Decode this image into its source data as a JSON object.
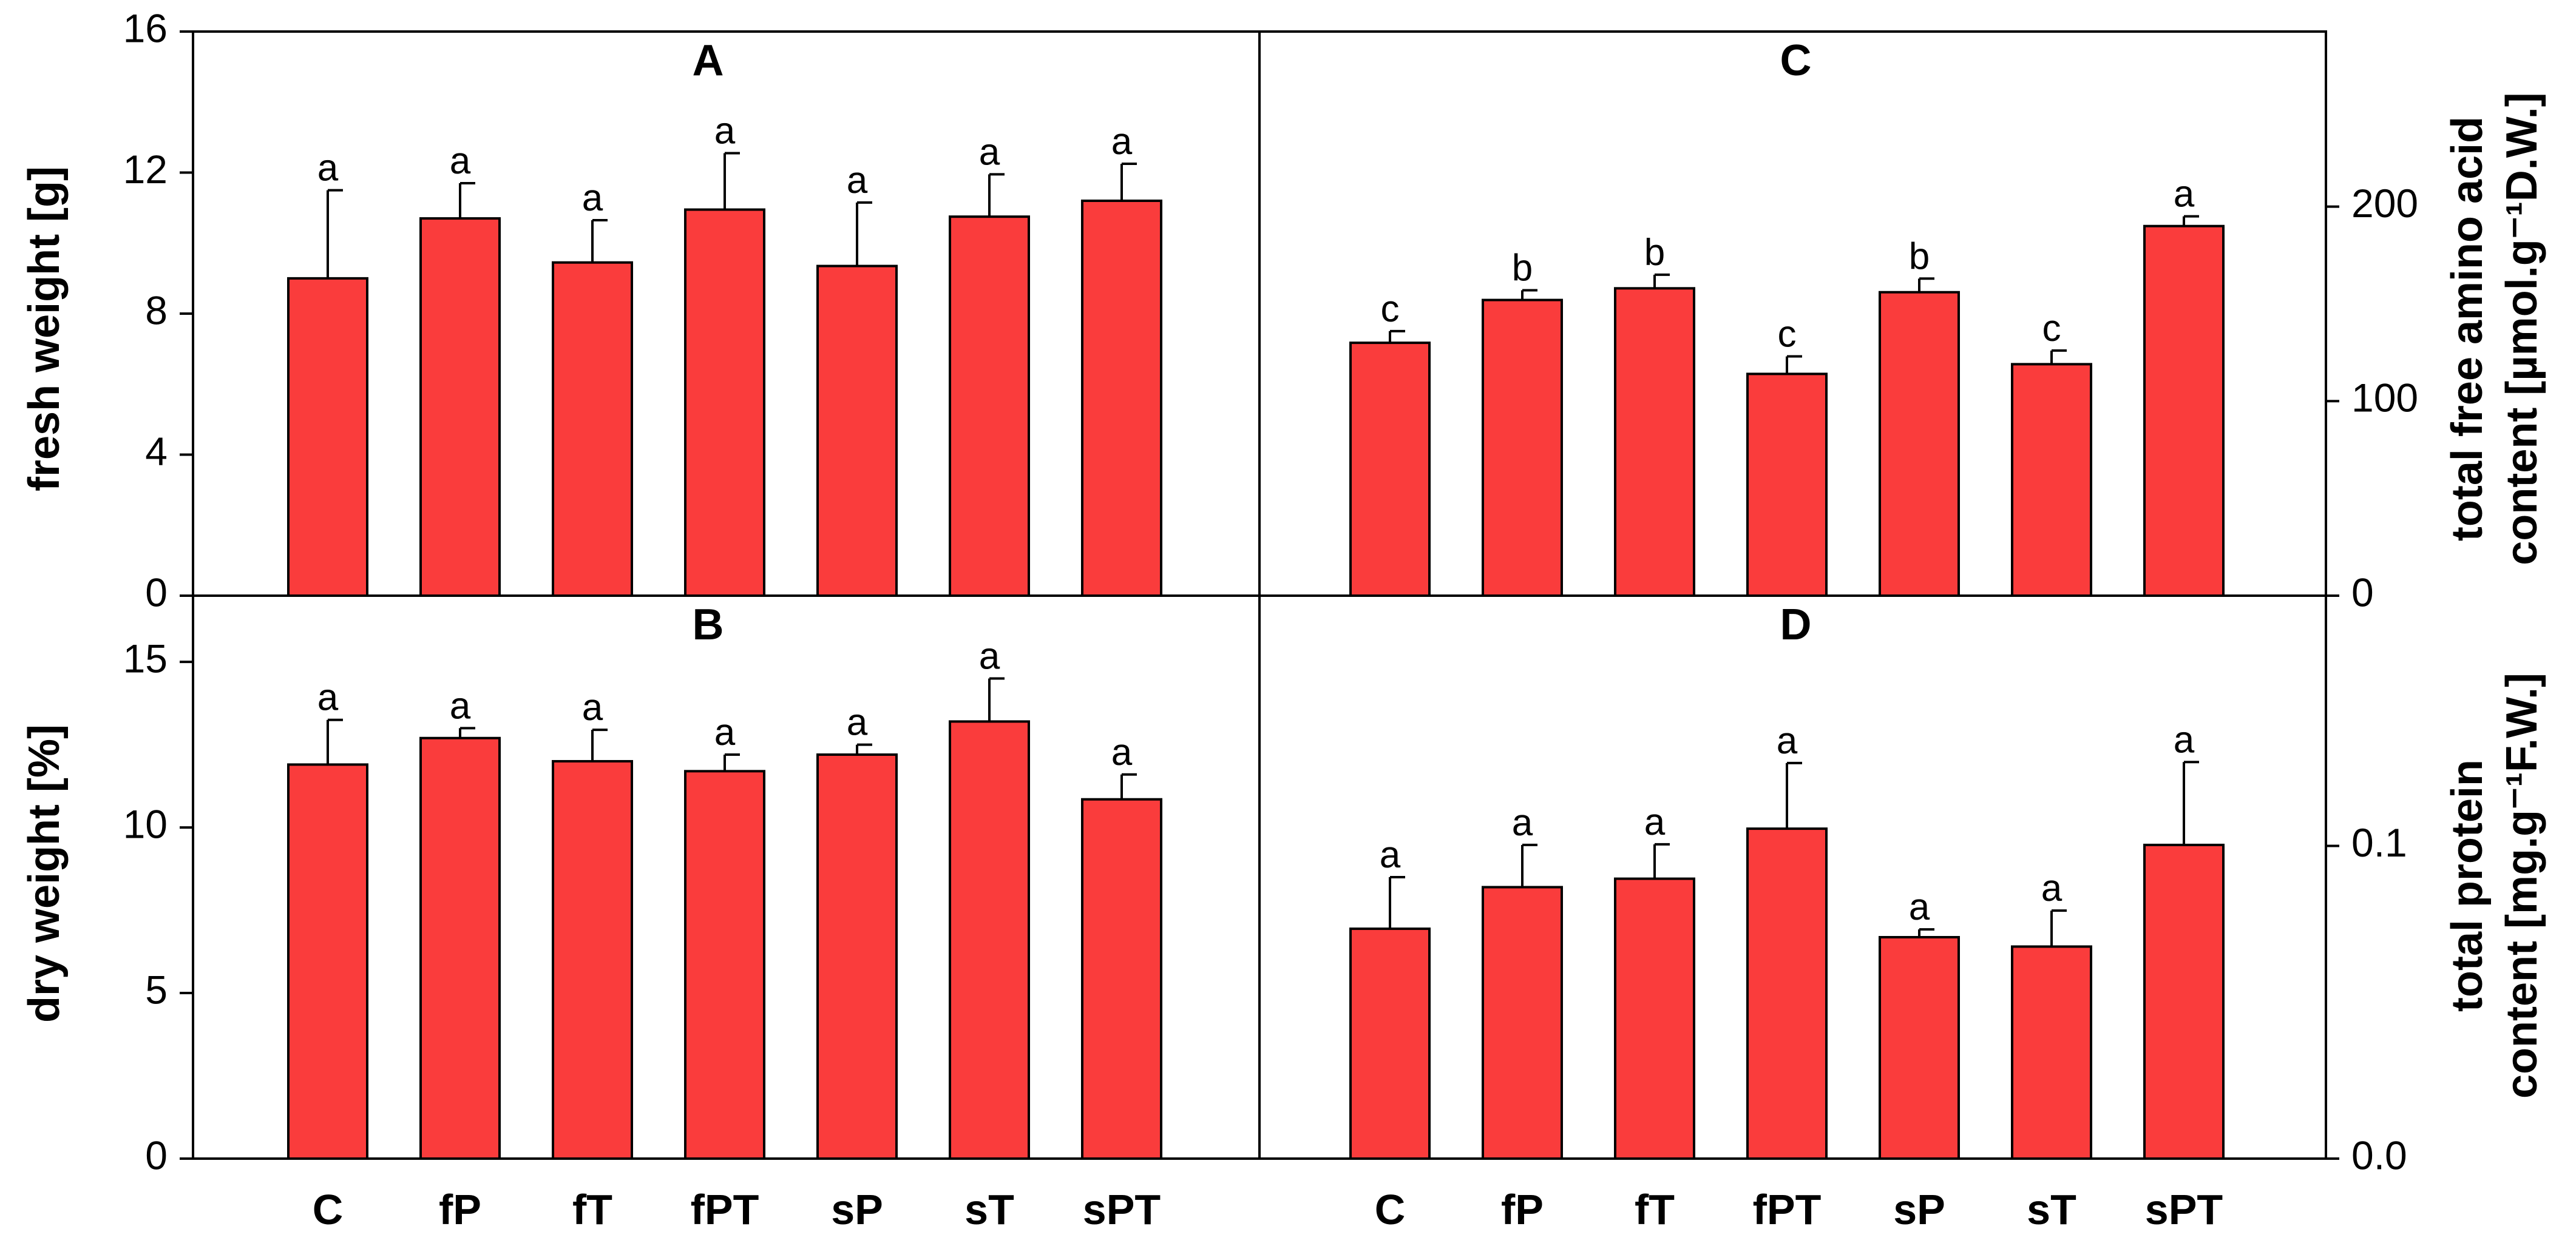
{
  "chart_data": [
    {
      "panel": "A",
      "type": "bar",
      "title": "A",
      "ylabel": "fresh weight [g]",
      "ylim": [
        0,
        16
      ],
      "yticks": [
        "0",
        "4",
        "8",
        "12",
        "16"
      ],
      "categories": [
        "C",
        "fP",
        "fT",
        "fPT",
        "sP",
        "sT",
        "sPT"
      ],
      "values": [
        9.0,
        10.7,
        9.45,
        10.95,
        9.35,
        10.75,
        11.2
      ],
      "errors": [
        2.5,
        1.0,
        1.2,
        1.6,
        1.8,
        1.2,
        1.05
      ],
      "significance": [
        "a",
        "a",
        "a",
        "a",
        "a",
        "a",
        "a"
      ]
    },
    {
      "panel": "B",
      "type": "bar",
      "title": "B",
      "ylabel": "dry weight [%]",
      "ylim": [
        0,
        17
      ],
      "yticks": [
        "0",
        "5",
        "10",
        "15"
      ],
      "categories": [
        "C",
        "fP",
        "fT",
        "fPT",
        "sP",
        "sT",
        "sPT"
      ],
      "values": [
        11.9,
        12.7,
        12.0,
        11.7,
        12.2,
        13.2,
        10.85
      ],
      "errors": [
        1.35,
        0.3,
        0.95,
        0.5,
        0.3,
        1.3,
        0.75
      ],
      "significance": [
        "a",
        "a",
        "a",
        "a",
        "a",
        "a",
        "a"
      ]
    },
    {
      "panel": "C",
      "type": "bar",
      "title": "C",
      "ylabel_lines": [
        "total free amino acid",
        "content [µmol.g⁻¹D.W.]"
      ],
      "ylim": [
        0,
        290
      ],
      "yticks": [
        "0",
        "100",
        "200"
      ],
      "categories": [
        "C",
        "fP",
        "fT",
        "fPT",
        "sP",
        "sT",
        "sPT"
      ],
      "values": [
        130,
        152,
        158,
        114,
        156,
        119,
        190
      ],
      "errors": [
        6,
        5,
        7,
        9,
        7,
        7,
        5
      ],
      "significance": [
        "c",
        "b",
        "b",
        "c",
        "b",
        "c",
        "a"
      ]
    },
    {
      "panel": "D",
      "type": "bar",
      "title": "D",
      "ylabel_lines": [
        "total protein",
        "content [mg.g⁻¹F.W.]"
      ],
      "ylim": [
        0,
        0.18
      ],
      "yticks": [
        "0.0",
        "0.1"
      ],
      "categories": [
        "C",
        "fP",
        "fT",
        "fPT",
        "sP",
        "sT",
        "sPT"
      ],
      "values": [
        0.0735,
        0.0868,
        0.0895,
        0.1055,
        0.0708,
        0.0678,
        0.1003
      ],
      "errors": [
        0.0165,
        0.0135,
        0.011,
        0.021,
        0.0025,
        0.0115,
        0.0265
      ],
      "significance": [
        "a",
        "a",
        "a",
        "a",
        "a",
        "a",
        "a"
      ]
    }
  ],
  "colors": {
    "bar_fill": "#fa3c3c",
    "stroke": "#000000"
  }
}
